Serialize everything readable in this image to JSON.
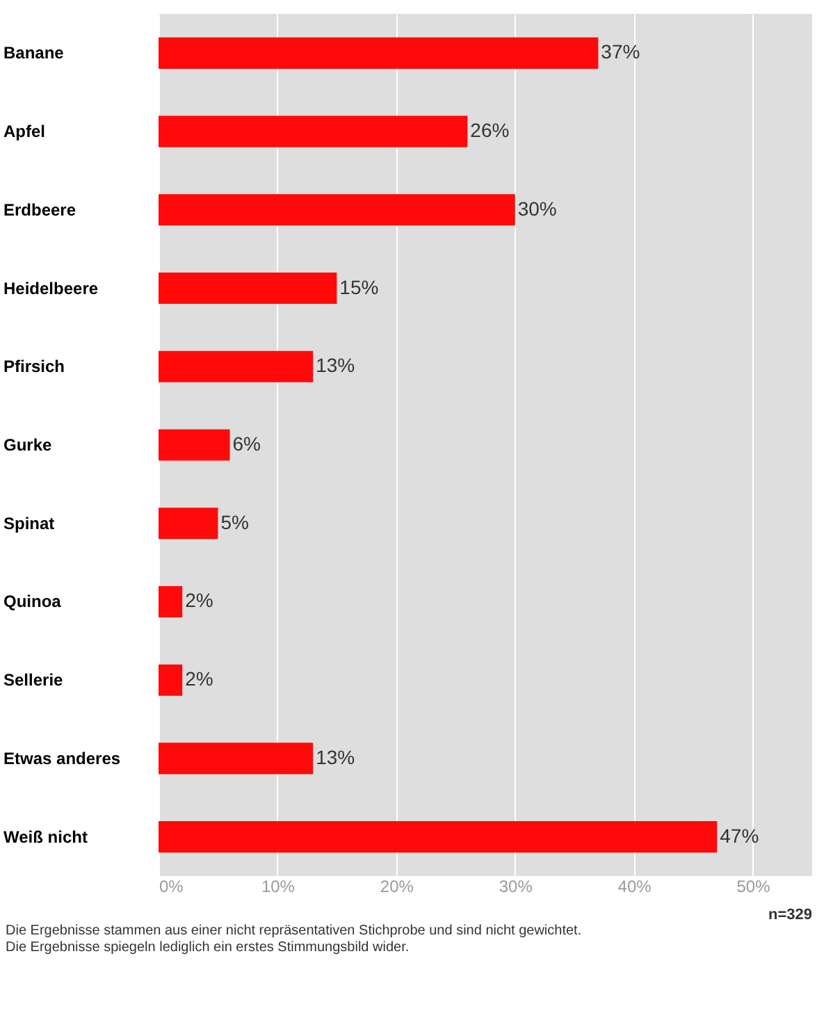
{
  "chart_data": {
    "type": "bar",
    "orientation": "horizontal",
    "categories": [
      "Banane",
      "Apfel",
      "Erdbeere",
      "Heidelbeere",
      "Pfirsich",
      "Gurke",
      "Spinat",
      "Quinoa",
      "Sellerie",
      "Etwas anderes",
      "Weiß nicht"
    ],
    "values": [
      37,
      26,
      30,
      15,
      13,
      6,
      5,
      2,
      2,
      13,
      47
    ],
    "value_labels": [
      "37%",
      "26%",
      "30%",
      "15%",
      "13%",
      "6%",
      "5%",
      "2%",
      "2%",
      "13%",
      "47%"
    ],
    "color": "#ff0a0a",
    "xlim": [
      0,
      55
    ],
    "xticks": [
      {
        "value": 0,
        "label": "0%"
      },
      {
        "value": 10,
        "label": "10%"
      },
      {
        "value": 20,
        "label": "20%"
      },
      {
        "value": 30,
        "label": "30%"
      },
      {
        "value": 40,
        "label": "40%"
      },
      {
        "value": 50,
        "label": "50%"
      }
    ],
    "grid": "x",
    "annotations": [
      "n=329",
      "Die Ergebnisse stammen aus einer nicht repräsentativen Stichprobe und sind nicht gewichtet.",
      "Die Ergebnisse spiegeln lediglich ein erstes Stimmungsbild wider."
    ]
  }
}
